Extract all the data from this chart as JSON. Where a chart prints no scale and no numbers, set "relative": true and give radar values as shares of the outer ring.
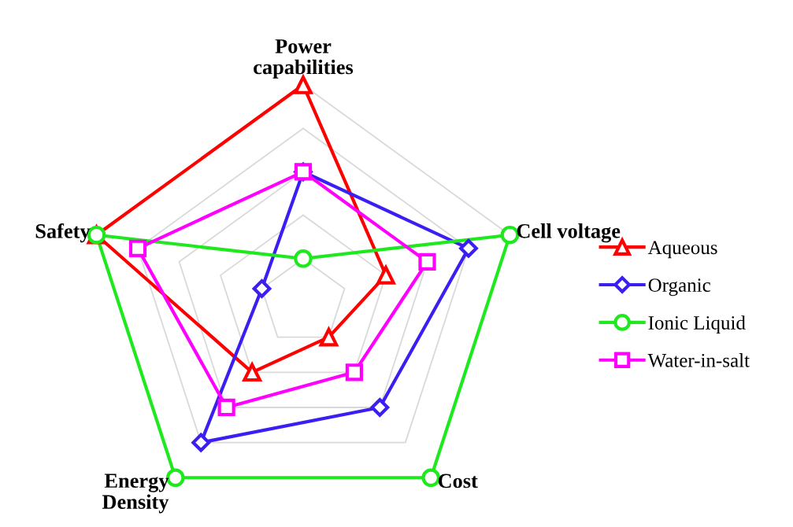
{
  "chart_data": {
    "type": "radar",
    "relative": true,
    "grid": true,
    "legend": "right",
    "categories": [
      "Power\ncapabilities",
      "Cell voltage",
      "Cost",
      "Energy\nDensity",
      "Safety"
    ],
    "series": [
      {
        "name": "Aqueous",
        "color": "#ff0000",
        "marker": "triangle",
        "values": [
          1.0,
          0.4,
          0.2,
          0.4,
          1.0
        ]
      },
      {
        "name": "Organic",
        "color": "#3b1ff2",
        "marker": "diamond",
        "values": [
          0.6,
          0.8,
          0.6,
          0.8,
          0.2
        ]
      },
      {
        "name": "Ionic Liquid",
        "color": "#1ee81e",
        "marker": "circle",
        "values": [
          0.2,
          1.0,
          1.0,
          1.0,
          1.0
        ]
      },
      {
        "name": "Water-in-salt",
        "color": "#ff00ff",
        "marker": "square",
        "values": [
          0.6,
          0.6,
          0.4,
          0.6,
          0.8
        ]
      }
    ]
  }
}
